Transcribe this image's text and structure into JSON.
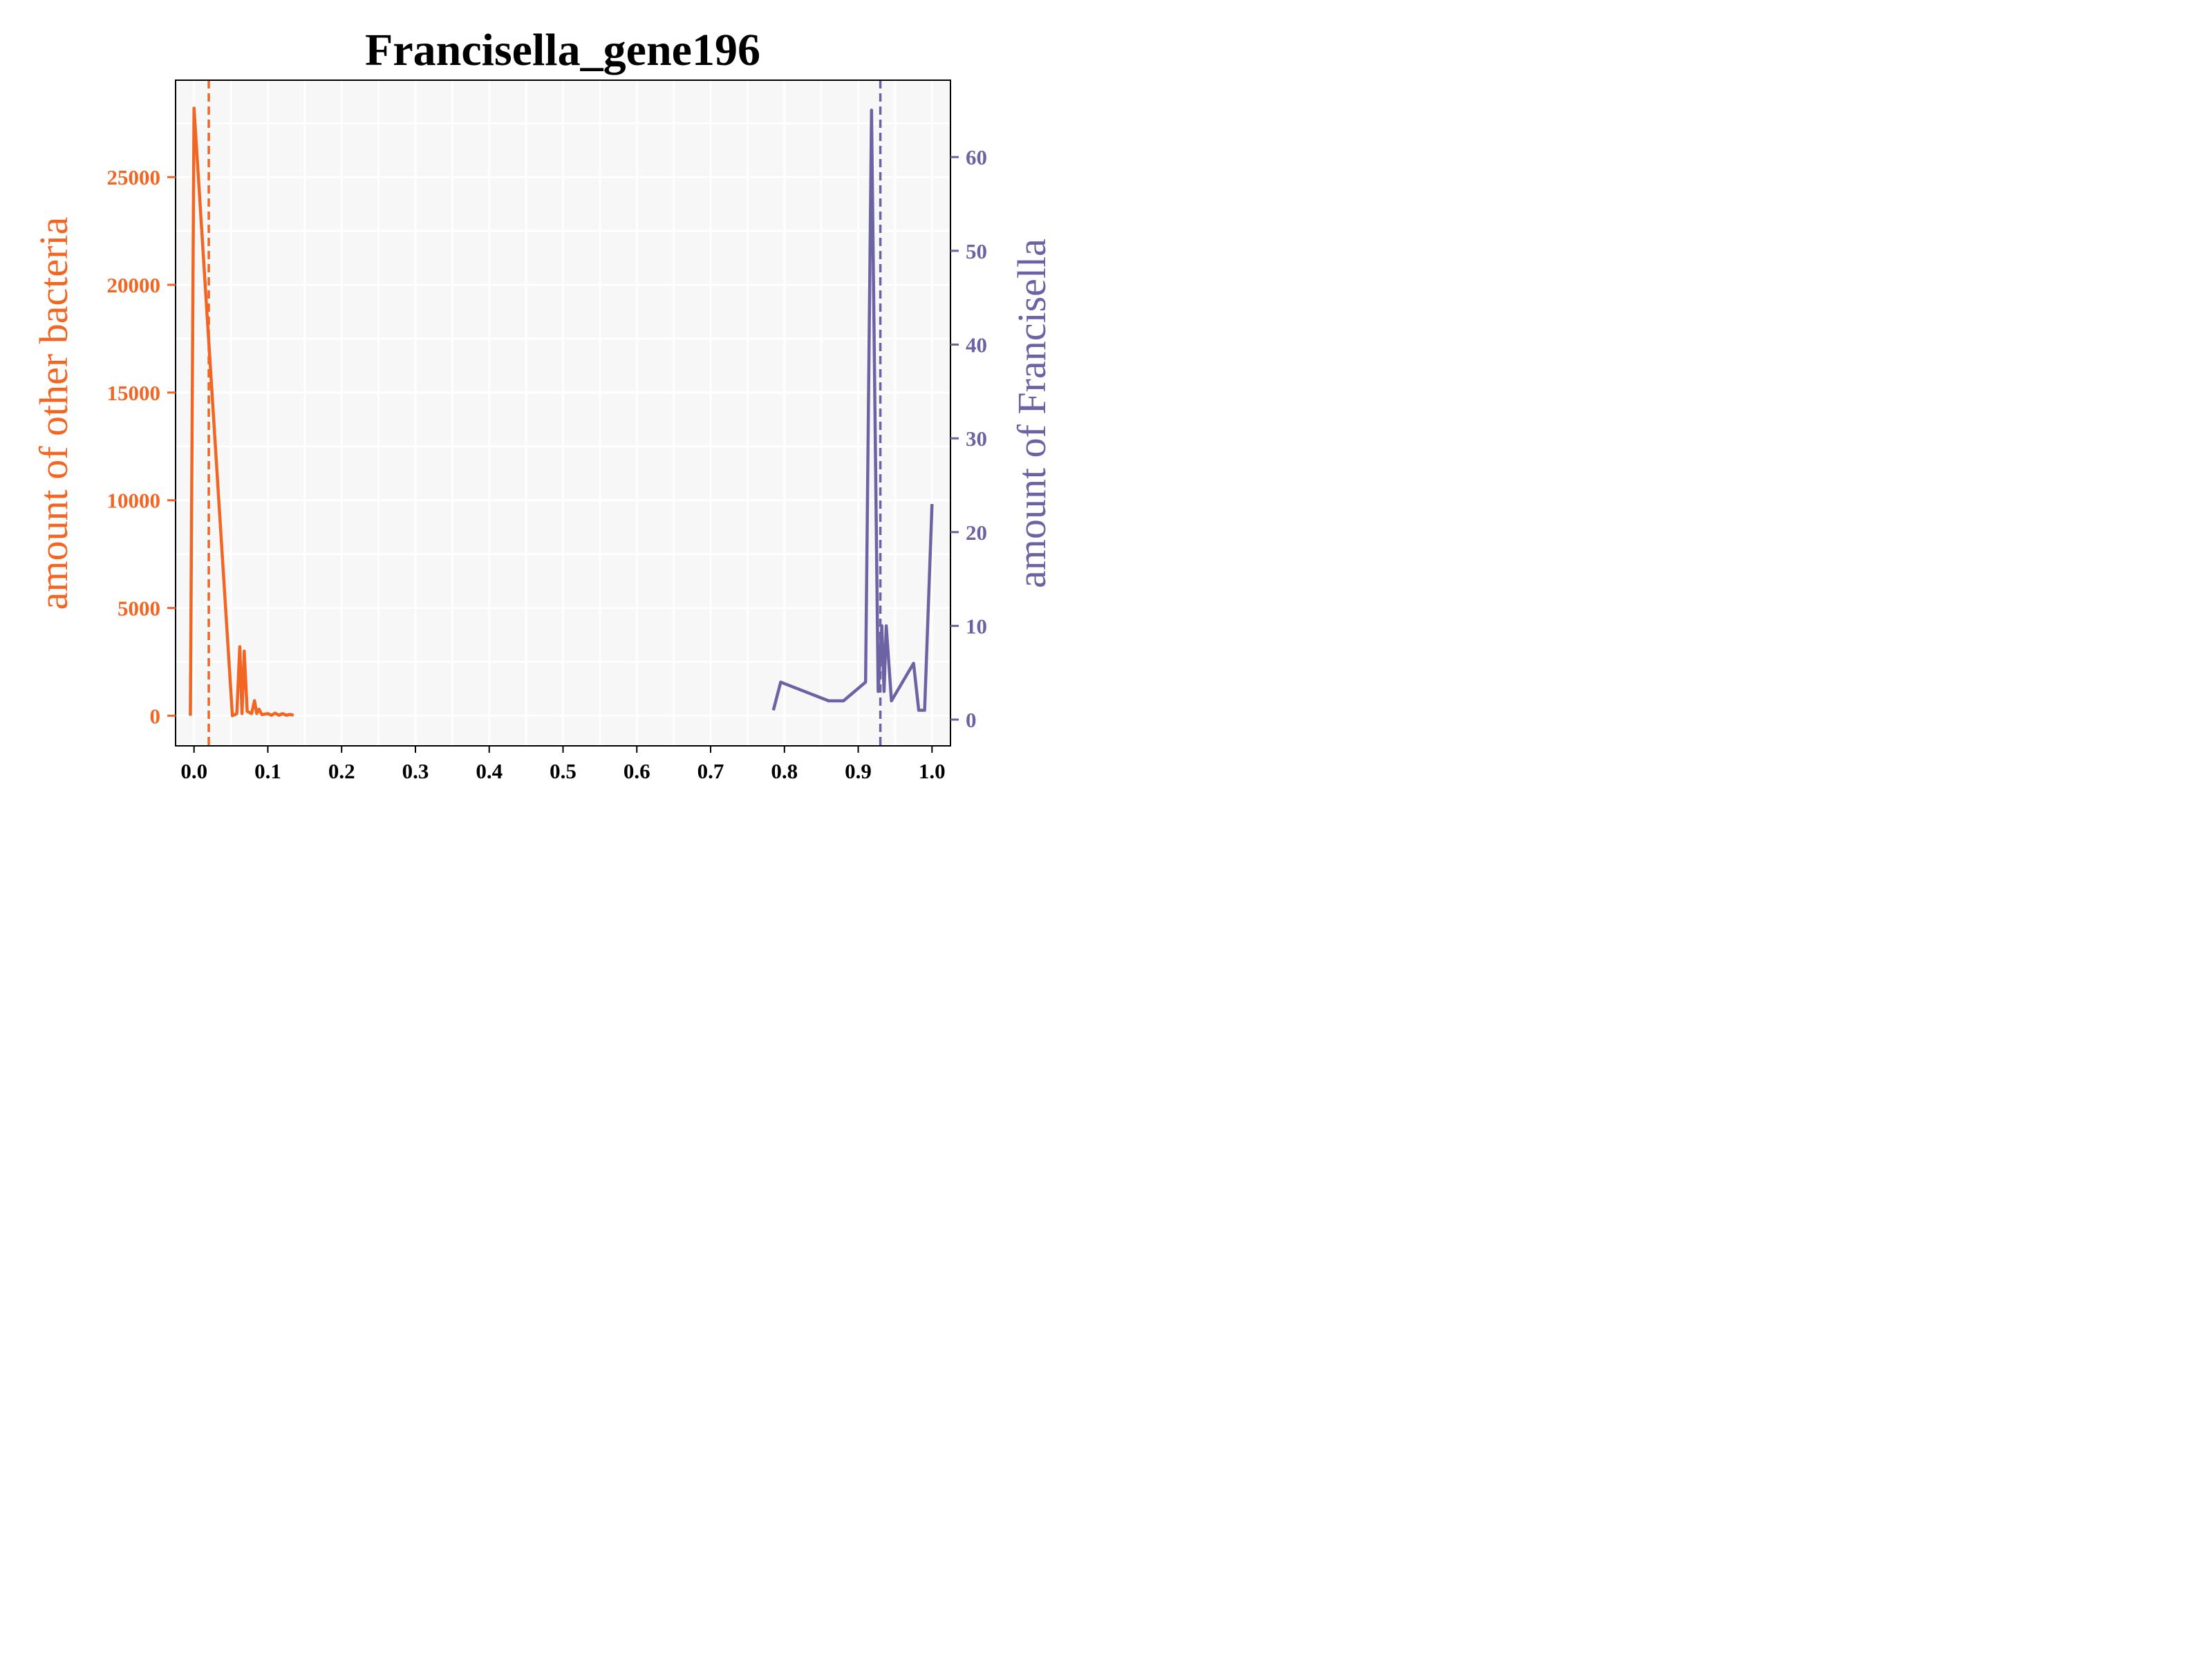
{
  "chart_data": {
    "type": "line",
    "title": "Francisella_gene196",
    "x_axis": {
      "range": [
        -0.025,
        1.025
      ],
      "ticks": [
        0.0,
        0.1,
        0.2,
        0.3,
        0.4,
        0.5,
        0.6,
        0.7,
        0.8,
        0.9,
        1.0
      ],
      "tick_labels": [
        "0.0",
        "0.1",
        "0.2",
        "0.3",
        "0.4",
        "0.5",
        "0.6",
        "0.7",
        "0.8",
        "0.9",
        "1.0"
      ]
    },
    "y_left": {
      "label": "amount of other bacteria",
      "range": [
        -1400,
        29500
      ],
      "ticks": [
        0,
        5000,
        10000,
        15000,
        20000,
        25000
      ],
      "tick_labels": [
        "0",
        "5000",
        "10000",
        "15000",
        "20000",
        "25000"
      ],
      "color": "#f26522"
    },
    "y_right": {
      "label": "amount of Francisella",
      "range": [
        -2.8,
        68.2
      ],
      "ticks": [
        0,
        10,
        20,
        30,
        40,
        50,
        60
      ],
      "tick_labels": [
        "0",
        "10",
        "20",
        "30",
        "40",
        "50",
        "60"
      ],
      "color": "#6c63a4"
    },
    "grid": true,
    "series": [
      {
        "axis": "left",
        "color": "#f26522",
        "points": [
          [
            -0.005,
            0
          ],
          [
            0.0,
            28200
          ],
          [
            0.052,
            0
          ],
          [
            0.058,
            100
          ],
          [
            0.062,
            3200
          ],
          [
            0.065,
            100
          ],
          [
            0.068,
            3000
          ],
          [
            0.072,
            200
          ],
          [
            0.078,
            100
          ],
          [
            0.082,
            700
          ],
          [
            0.085,
            100
          ],
          [
            0.088,
            300
          ],
          [
            0.092,
            50
          ],
          [
            0.1,
            100
          ],
          [
            0.105,
            20
          ],
          [
            0.11,
            120
          ],
          [
            0.115,
            20
          ],
          [
            0.12,
            100
          ],
          [
            0.125,
            20
          ],
          [
            0.13,
            60
          ],
          [
            0.135,
            20
          ]
        ]
      },
      {
        "axis": "right",
        "color": "#6c63a4",
        "points": [
          [
            0.785,
            1
          ],
          [
            0.795,
            4
          ],
          [
            0.86,
            2
          ],
          [
            0.88,
            2
          ],
          [
            0.91,
            4
          ],
          [
            0.918,
            65
          ],
          [
            0.927,
            3
          ],
          [
            0.932,
            10
          ],
          [
            0.935,
            3
          ],
          [
            0.938,
            10
          ],
          [
            0.945,
            2
          ],
          [
            0.975,
            6
          ],
          [
            0.982,
            1
          ],
          [
            0.99,
            1
          ],
          [
            1.0,
            23
          ]
        ]
      }
    ],
    "reference_lines": [
      {
        "axis": "x",
        "value": 0.02,
        "color": "#f26522",
        "style": "dashed"
      },
      {
        "axis": "x",
        "value": 0.93,
        "color": "#6c63a4",
        "style": "dashed"
      }
    ]
  }
}
